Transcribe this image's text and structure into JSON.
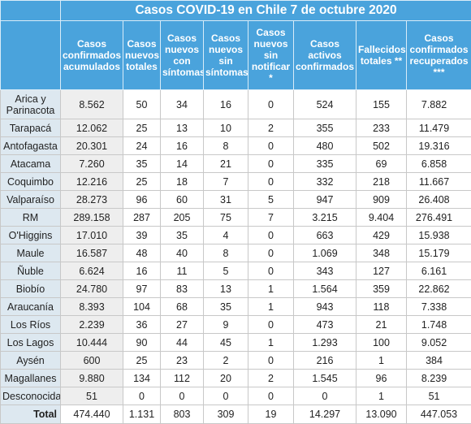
{
  "title": "Casos COVID-19 en Chile 7 de octubre 2020",
  "columns": [
    "Casos confirmados acumulados",
    "Casos nuevos totales",
    "Casos nuevos con síntomas",
    "Casos nuevos sin síntomas",
    "Casos nuevos sin notificar *",
    "Casos activos confirmados",
    "Fallecidos totales **",
    "Casos confirmados recuperados ***"
  ],
  "rows": [
    {
      "region": "Arica y Parinacota",
      "values": [
        "8.562",
        "50",
        "34",
        "16",
        "0",
        "524",
        "155",
        "7.882"
      ]
    },
    {
      "region": "Tarapacá",
      "values": [
        "12.062",
        "25",
        "13",
        "10",
        "2",
        "355",
        "233",
        "11.479"
      ]
    },
    {
      "region": "Antofagasta",
      "values": [
        "20.301",
        "24",
        "16",
        "8",
        "0",
        "480",
        "502",
        "19.316"
      ]
    },
    {
      "region": "Atacama",
      "values": [
        "7.260",
        "35",
        "14",
        "21",
        "0",
        "335",
        "69",
        "6.858"
      ]
    },
    {
      "region": "Coquimbo",
      "values": [
        "12.216",
        "25",
        "18",
        "7",
        "0",
        "332",
        "218",
        "11.667"
      ]
    },
    {
      "region": "Valparaíso",
      "values": [
        "28.273",
        "96",
        "60",
        "31",
        "5",
        "947",
        "909",
        "26.408"
      ]
    },
    {
      "region": "RM",
      "values": [
        "289.158",
        "287",
        "205",
        "75",
        "7",
        "3.215",
        "9.404",
        "276.491"
      ]
    },
    {
      "region": "O'Higgins",
      "values": [
        "17.010",
        "39",
        "35",
        "4",
        "0",
        "663",
        "429",
        "15.938"
      ]
    },
    {
      "region": "Maule",
      "values": [
        "16.587",
        "48",
        "40",
        "8",
        "0",
        "1.069",
        "348",
        "15.179"
      ]
    },
    {
      "region": "Ñuble",
      "values": [
        "6.624",
        "16",
        "11",
        "5",
        "0",
        "343",
        "127",
        "6.161"
      ]
    },
    {
      "region": "Biobío",
      "values": [
        "24.780",
        "97",
        "83",
        "13",
        "1",
        "1.564",
        "359",
        "22.862"
      ]
    },
    {
      "region": "Araucanía",
      "values": [
        "8.393",
        "104",
        "68",
        "35",
        "1",
        "943",
        "118",
        "7.338"
      ]
    },
    {
      "region": "Los Ríos",
      "values": [
        "2.239",
        "36",
        "27",
        "9",
        "0",
        "473",
        "21",
        "1.748"
      ]
    },
    {
      "region": "Los Lagos",
      "values": [
        "10.444",
        "90",
        "44",
        "45",
        "1",
        "1.293",
        "100",
        "9.052"
      ]
    },
    {
      "region": "Aysén",
      "values": [
        "600",
        "25",
        "23",
        "2",
        "0",
        "216",
        "1",
        "384"
      ]
    },
    {
      "region": "Magallanes",
      "values": [
        "9.880",
        "134",
        "112",
        "20",
        "2",
        "1.545",
        "96",
        "8.239"
      ]
    },
    {
      "region": "Desconocida",
      "values": [
        "51",
        "0",
        "0",
        "0",
        "0",
        "0",
        "1",
        "51"
      ]
    }
  ],
  "total": {
    "region": "Total",
    "values": [
      "474.440",
      "1.131",
      "803",
      "309",
      "19",
      "14.297",
      "13.090",
      "447.053"
    ]
  }
}
